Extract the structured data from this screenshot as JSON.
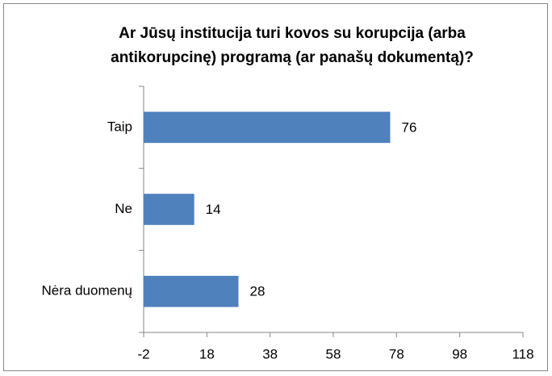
{
  "chart_data": {
    "type": "bar",
    "orientation": "horizontal",
    "title": [
      "Ar Jūsų institucija turi kovos su korupcija (arba",
      "antikorupcinę) programą (ar panašų dokumentą)?"
    ],
    "categories": [
      "Taip",
      "Ne",
      "Nėra duomenų"
    ],
    "values": [
      76,
      14,
      28
    ],
    "color": "#4f81bd",
    "xlim": [
      -2,
      118
    ],
    "xticks": [
      -2,
      18,
      38,
      58,
      78,
      98,
      118
    ],
    "grid": false
  }
}
